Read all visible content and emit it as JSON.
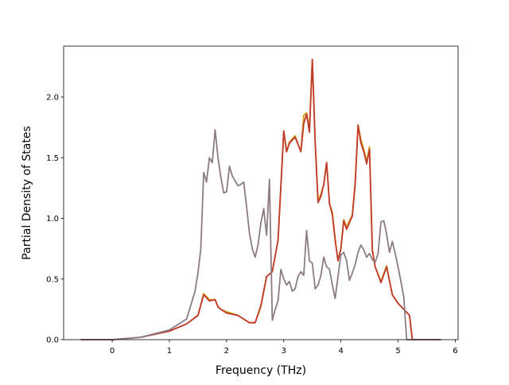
{
  "chart_data": {
    "type": "line",
    "title": "",
    "xlabel": "Frequency (THz)",
    "ylabel": "Partial Density of States",
    "xlim": [
      -0.85,
      6.05
    ],
    "ylim": [
      0,
      2.42
    ],
    "xticks": [
      0,
      1,
      2,
      3,
      4,
      5,
      6
    ],
    "yticks": [
      0.0,
      0.5,
      1.0,
      1.5,
      2.0
    ],
    "xtick_labels": [
      "0",
      "1",
      "2",
      "3",
      "4",
      "5",
      "6"
    ],
    "ytick_labels": [
      "0.0",
      "0.5",
      "1.0",
      "1.5",
      "2.0"
    ],
    "grid": false,
    "legend": "none",
    "series": [
      {
        "color": "#d4a017",
        "x": [
          -0.55,
          0.0,
          0.5,
          1.0,
          1.3,
          1.5,
          1.6,
          1.7,
          1.8,
          1.85,
          1.9,
          2.0,
          2.2,
          2.4,
          2.5,
          2.6,
          2.7,
          2.8,
          2.9,
          3.0,
          3.05,
          3.1,
          3.2,
          3.3,
          3.35,
          3.4,
          3.45,
          3.5,
          3.55,
          3.6,
          3.65,
          3.7,
          3.75,
          3.8,
          3.85,
          3.9,
          3.95,
          4.0,
          4.05,
          4.1,
          4.2,
          4.25,
          4.3,
          4.35,
          4.4,
          4.45,
          4.5,
          4.55,
          4.6,
          4.7,
          4.8,
          4.9,
          5.0,
          5.1,
          5.2,
          5.25,
          5.75
        ],
        "y": [
          0.0,
          0.0,
          0.02,
          0.07,
          0.13,
          0.2,
          0.38,
          0.33,
          0.33,
          0.27,
          0.25,
          0.23,
          0.2,
          0.14,
          0.14,
          0.27,
          0.52,
          0.56,
          0.82,
          1.72,
          1.55,
          1.63,
          1.68,
          1.55,
          1.85,
          1.87,
          1.74,
          2.31,
          1.63,
          1.15,
          1.2,
          1.28,
          1.46,
          1.12,
          1.05,
          0.83,
          0.65,
          0.75,
          0.99,
          0.93,
          1.03,
          1.3,
          1.77,
          1.65,
          1.57,
          1.47,
          1.59,
          0.74,
          0.6,
          0.48,
          0.61,
          0.37,
          0.3,
          0.25,
          0.2,
          0.0,
          0.0
        ]
      },
      {
        "color": "#c0392b",
        "x": [
          -0.55,
          0.0,
          0.5,
          1.0,
          1.3,
          1.5,
          1.6,
          1.7,
          1.8,
          1.85,
          1.9,
          2.0,
          2.2,
          2.4,
          2.5,
          2.6,
          2.7,
          2.8,
          2.9,
          3.0,
          3.05,
          3.1,
          3.2,
          3.3,
          3.35,
          3.4,
          3.45,
          3.5,
          3.55,
          3.6,
          3.65,
          3.7,
          3.75,
          3.8,
          3.85,
          3.9,
          3.95,
          4.0,
          4.05,
          4.1,
          4.2,
          4.25,
          4.3,
          4.35,
          4.4,
          4.45,
          4.5,
          4.55,
          4.6,
          4.7,
          4.8,
          4.9,
          5.0,
          5.1,
          5.2,
          5.25,
          5.75
        ],
        "y": [
          0.0,
          0.0,
          0.02,
          0.07,
          0.13,
          0.2,
          0.37,
          0.32,
          0.33,
          0.27,
          0.25,
          0.22,
          0.2,
          0.14,
          0.14,
          0.28,
          0.52,
          0.56,
          0.82,
          1.72,
          1.55,
          1.62,
          1.67,
          1.55,
          1.78,
          1.86,
          1.71,
          2.31,
          1.62,
          1.13,
          1.18,
          1.28,
          1.46,
          1.12,
          1.03,
          0.82,
          0.65,
          0.75,
          0.98,
          0.91,
          1.02,
          1.28,
          1.77,
          1.62,
          1.55,
          1.45,
          1.57,
          0.73,
          0.6,
          0.47,
          0.6,
          0.37,
          0.3,
          0.25,
          0.2,
          0.0,
          0.0
        ]
      },
      {
        "color": "#8c7b85",
        "x": [
          -0.55,
          0.0,
          0.5,
          1.0,
          1.3,
          1.45,
          1.5,
          1.55,
          1.6,
          1.65,
          1.7,
          1.75,
          1.8,
          1.85,
          1.9,
          1.95,
          2.0,
          2.05,
          2.1,
          2.2,
          2.25,
          2.3,
          2.35,
          2.4,
          2.45,
          2.5,
          2.55,
          2.6,
          2.65,
          2.7,
          2.75,
          2.8,
          2.85,
          2.9,
          2.95,
          3.0,
          3.05,
          3.1,
          3.15,
          3.2,
          3.25,
          3.3,
          3.35,
          3.4,
          3.45,
          3.5,
          3.55,
          3.6,
          3.65,
          3.7,
          3.75,
          3.8,
          3.85,
          3.9,
          4.0,
          4.05,
          4.1,
          4.15,
          4.2,
          4.25,
          4.3,
          4.35,
          4.4,
          4.45,
          4.5,
          4.55,
          4.6,
          4.65,
          4.7,
          4.75,
          4.8,
          4.85,
          4.9,
          4.95,
          5.0,
          5.05,
          5.1,
          5.15,
          5.2,
          5.25,
          5.75
        ],
        "y": [
          0.0,
          0.0,
          0.02,
          0.08,
          0.17,
          0.4,
          0.55,
          0.75,
          1.38,
          1.3,
          1.5,
          1.46,
          1.73,
          1.5,
          1.34,
          1.21,
          1.22,
          1.43,
          1.35,
          1.27,
          1.28,
          1.3,
          1.1,
          0.88,
          0.75,
          0.68,
          0.78,
          0.96,
          1.08,
          0.86,
          1.32,
          0.16,
          0.25,
          0.32,
          0.58,
          0.5,
          0.45,
          0.48,
          0.4,
          0.42,
          0.52,
          0.56,
          0.53,
          0.9,
          0.65,
          0.63,
          0.42,
          0.45,
          0.53,
          0.68,
          0.6,
          0.58,
          0.45,
          0.34,
          0.7,
          0.72,
          0.65,
          0.49,
          0.55,
          0.62,
          0.72,
          0.78,
          0.74,
          0.68,
          0.71,
          0.66,
          0.64,
          0.71,
          0.97,
          0.98,
          0.87,
          0.72,
          0.81,
          0.71,
          0.6,
          0.48,
          0.35,
          0.0,
          0.0,
          0.0,
          0.0
        ]
      }
    ]
  }
}
